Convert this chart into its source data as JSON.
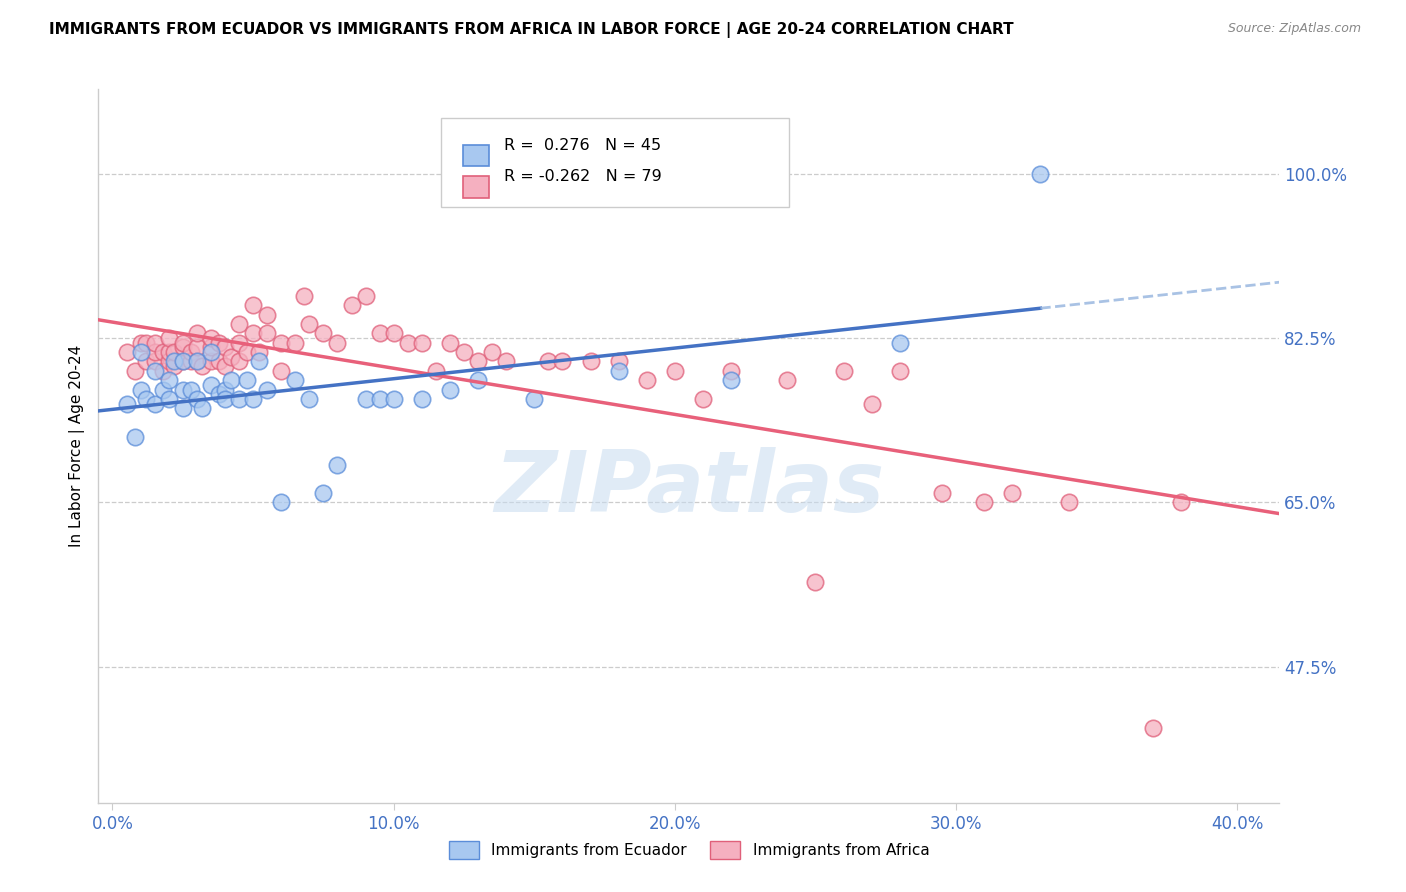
{
  "title": "IMMIGRANTS FROM ECUADOR VS IMMIGRANTS FROM AFRICA IN LABOR FORCE | AGE 20-24 CORRELATION CHART",
  "source": "Source: ZipAtlas.com",
  "ylabel": "In Labor Force | Age 20-24",
  "x_tick_labels": [
    "0.0%",
    "10.0%",
    "20.0%",
    "30.0%",
    "40.0%"
  ],
  "x_tick_positions": [
    0.0,
    0.1,
    0.2,
    0.3,
    0.4
  ],
  "y_tick_labels": [
    "100.0%",
    "82.5%",
    "65.0%",
    "47.5%"
  ],
  "y_tick_positions": [
    1.0,
    0.825,
    0.65,
    0.475
  ],
  "xlim": [
    -0.005,
    0.415
  ],
  "ylim": [
    0.33,
    1.09
  ],
  "legend1_r": "0.276",
  "legend1_n": "45",
  "legend2_r": "-0.262",
  "legend2_n": "79",
  "ecuador_fill": "#A8C8F0",
  "ecuador_edge": "#5B8DD9",
  "africa_fill": "#F5B0C0",
  "africa_edge": "#E0607A",
  "line_ecuador_solid": "#4472C4",
  "line_ecuador_dash": "#9AB8E0",
  "line_africa": "#E8607A",
  "watermark_text": "ZIPatlas",
  "ecuador_x": [
    0.005,
    0.008,
    0.01,
    0.01,
    0.012,
    0.015,
    0.015,
    0.018,
    0.02,
    0.02,
    0.022,
    0.025,
    0.025,
    0.025,
    0.028,
    0.03,
    0.03,
    0.032,
    0.035,
    0.035,
    0.038,
    0.04,
    0.04,
    0.042,
    0.045,
    0.048,
    0.05,
    0.052,
    0.055,
    0.06,
    0.065,
    0.07,
    0.075,
    0.08,
    0.09,
    0.095,
    0.1,
    0.11,
    0.12,
    0.13,
    0.15,
    0.18,
    0.22,
    0.28,
    0.33
  ],
  "ecuador_y": [
    0.755,
    0.72,
    0.77,
    0.81,
    0.76,
    0.755,
    0.79,
    0.77,
    0.78,
    0.76,
    0.8,
    0.75,
    0.77,
    0.8,
    0.77,
    0.76,
    0.8,
    0.75,
    0.775,
    0.81,
    0.765,
    0.77,
    0.76,
    0.78,
    0.76,
    0.78,
    0.76,
    0.8,
    0.77,
    0.65,
    0.78,
    0.76,
    0.66,
    0.69,
    0.76,
    0.76,
    0.76,
    0.76,
    0.77,
    0.78,
    0.76,
    0.79,
    0.78,
    0.82,
    1.0
  ],
  "africa_x": [
    0.005,
    0.008,
    0.01,
    0.012,
    0.012,
    0.015,
    0.015,
    0.015,
    0.018,
    0.018,
    0.02,
    0.02,
    0.02,
    0.022,
    0.022,
    0.025,
    0.025,
    0.025,
    0.028,
    0.028,
    0.03,
    0.03,
    0.03,
    0.032,
    0.035,
    0.035,
    0.035,
    0.038,
    0.038,
    0.04,
    0.04,
    0.042,
    0.045,
    0.045,
    0.045,
    0.048,
    0.05,
    0.05,
    0.052,
    0.055,
    0.055,
    0.06,
    0.06,
    0.065,
    0.068,
    0.07,
    0.075,
    0.08,
    0.085,
    0.09,
    0.095,
    0.1,
    0.105,
    0.11,
    0.115,
    0.12,
    0.125,
    0.13,
    0.135,
    0.14,
    0.155,
    0.16,
    0.17,
    0.18,
    0.19,
    0.2,
    0.21,
    0.22,
    0.24,
    0.25,
    0.26,
    0.27,
    0.28,
    0.295,
    0.31,
    0.32,
    0.34,
    0.37,
    0.38
  ],
  "africa_y": [
    0.81,
    0.79,
    0.82,
    0.8,
    0.82,
    0.8,
    0.81,
    0.82,
    0.79,
    0.81,
    0.8,
    0.81,
    0.825,
    0.795,
    0.81,
    0.8,
    0.815,
    0.82,
    0.8,
    0.81,
    0.8,
    0.815,
    0.83,
    0.795,
    0.8,
    0.815,
    0.825,
    0.8,
    0.82,
    0.795,
    0.815,
    0.805,
    0.8,
    0.82,
    0.84,
    0.81,
    0.83,
    0.86,
    0.81,
    0.83,
    0.85,
    0.79,
    0.82,
    0.82,
    0.87,
    0.84,
    0.83,
    0.82,
    0.86,
    0.87,
    0.83,
    0.83,
    0.82,
    0.82,
    0.79,
    0.82,
    0.81,
    0.8,
    0.81,
    0.8,
    0.8,
    0.8,
    0.8,
    0.8,
    0.78,
    0.79,
    0.76,
    0.79,
    0.78,
    0.565,
    0.79,
    0.755,
    0.79,
    0.66,
    0.65,
    0.66,
    0.65,
    0.41,
    0.65
  ]
}
